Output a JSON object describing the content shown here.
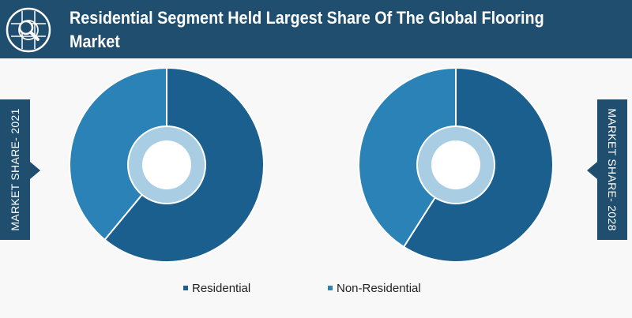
{
  "header": {
    "title": "Residential Segment Held Largest Share Of The Global Flooring Market",
    "icon": "globe-magnifier-icon"
  },
  "colors": {
    "header_bg": "#1f4e6e",
    "residential": "#1a5f8e",
    "non_residential": "#2a82b6",
    "inner_ring": "#a9cde3"
  },
  "side_tabs": {
    "left_label": "MARKET SHARE- 2021",
    "right_label": "MARKET SHARE- 2028"
  },
  "chart_data": [
    {
      "type": "pie",
      "variant": "donut",
      "year_label": "MARKET SHARE- 2021",
      "categories": [
        "Residential",
        "Non-Residential"
      ],
      "values": [
        61,
        39
      ]
    },
    {
      "type": "pie",
      "variant": "donut",
      "year_label": "MARKET SHARE- 2028",
      "categories": [
        "Residential",
        "Non-Residential"
      ],
      "values": [
        59,
        41
      ]
    }
  ],
  "legend": {
    "placement": "bottom-center",
    "items": [
      {
        "label": "Residential",
        "color": "#1a5f8e"
      },
      {
        "label": "Non-Residential",
        "color": "#2a82b6"
      }
    ]
  }
}
